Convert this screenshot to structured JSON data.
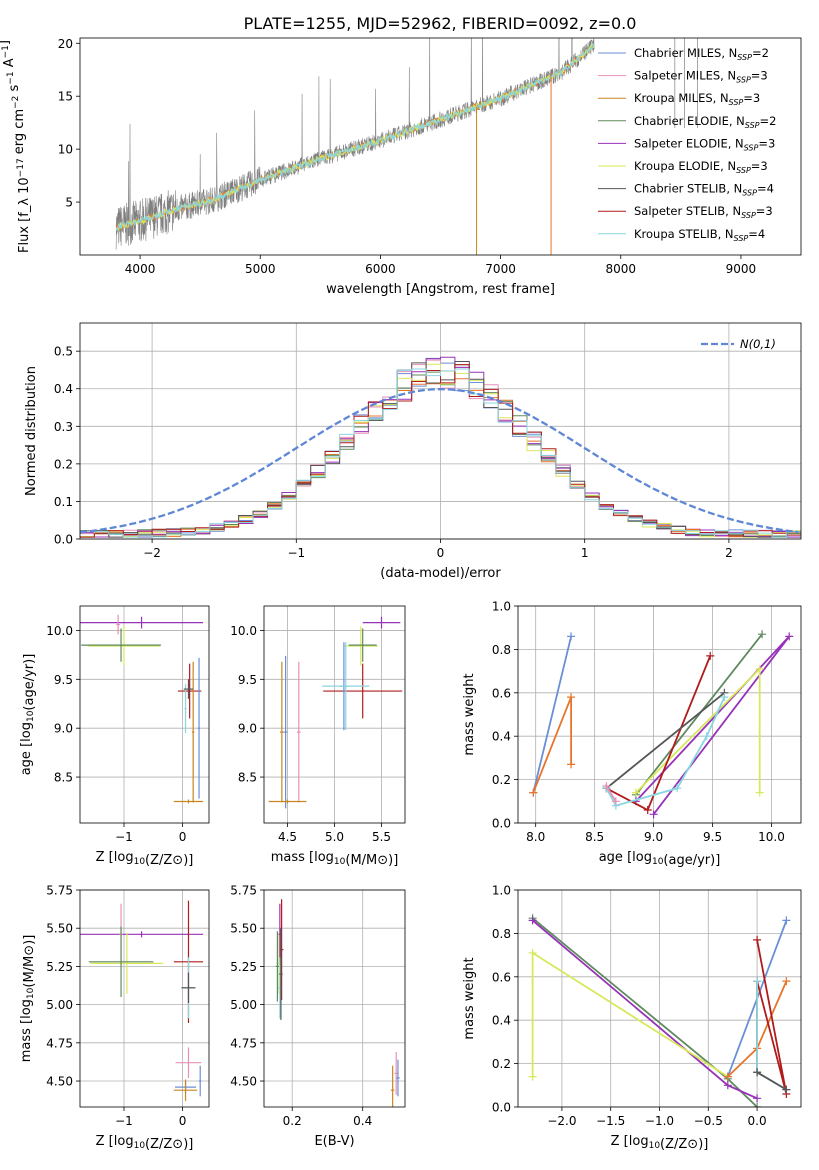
{
  "colors": {
    "Chabrier MILES": "#6a8fd6",
    "Salpeter MILES": "#e891b8",
    "Kroupa MILES": "#c7861f",
    "Chabrier ELODIE": "#5f8a5f",
    "Salpeter ELODIE": "#9632b8",
    "Kroupa ELODIE": "#d8e85a",
    "Chabrier STELIB": "#555555",
    "Salpeter STELIB": "#b01c1c",
    "Kroupa STELIB": "#8ad6e0",
    "data": "#808080",
    "orange": "#e8742a",
    "gaussian": "#5f87d6"
  },
  "chart_data": [
    {
      "id": "spectrum",
      "type": "line",
      "title": "PLATE=1255, MJD=52962, FIBERID=0092, z=0.0",
      "xlabel": "wavelength [Angstrom, rest frame]",
      "ylabel": "Flux [f_λ 10^-17 erg cm^-2 s^-1 A^-1]",
      "xlim": [
        3500,
        9500
      ],
      "ylim": [
        0,
        20.5
      ],
      "xticks": [
        4000,
        5000,
        6000,
        7000,
        8000,
        9000
      ],
      "yticks": [
        5,
        10,
        15,
        20
      ],
      "legend_position": "right",
      "legend": [
        {
          "label": "Chabrier MILES, N",
          "sub": "SSP",
          "tail": "=2",
          "model": "Chabrier MILES"
        },
        {
          "label": "Salpeter MILES, N",
          "sub": "SSP",
          "tail": "=3",
          "model": "Salpeter MILES"
        },
        {
          "label": "Kroupa MILES, N",
          "sub": "SSP",
          "tail": "=3",
          "model": "Kroupa MILES"
        },
        {
          "label": "Chabrier ELODIE, N",
          "sub": "SSP",
          "tail": "=2",
          "model": "Chabrier ELODIE"
        },
        {
          "label": "Salpeter ELODIE, N",
          "sub": "SSP",
          "tail": "=3",
          "model": "Salpeter ELODIE"
        },
        {
          "label": "Kroupa ELODIE, N",
          "sub": "SSP",
          "tail": "=3",
          "model": "Kroupa ELODIE"
        },
        {
          "label": "Chabrier STELIB, N",
          "sub": "SSP",
          "tail": "=4",
          "model": "Chabrier STELIB"
        },
        {
          "label": "Salpeter STELIB, N",
          "sub": "SSP",
          "tail": "=3",
          "model": "Salpeter STELIB"
        },
        {
          "label": "Kroupa STELIB, N",
          "sub": "SSP",
          "tail": "=4",
          "model": "Kroupa STELIB"
        }
      ],
      "continuum": {
        "x": [
          3800,
          4000,
          4300,
          4600,
          5000,
          5500,
          6000,
          6500,
          7000,
          7500,
          7800
        ],
        "y": [
          2.6,
          3.2,
          4.3,
          5.2,
          7.1,
          9.1,
          10.8,
          12.8,
          14.8,
          17.2,
          20.0
        ]
      },
      "noise_amplitude": 1.3
    },
    {
      "id": "residuals",
      "type": "step",
      "xlabel": "(data-model)/error",
      "ylabel": "Normed distribution",
      "xlim": [
        -2.5,
        2.5
      ],
      "ylim": [
        0,
        0.575
      ],
      "xticks": [
        -2,
        -1,
        0,
        1,
        2
      ],
      "yticks": [
        0.0,
        0.1,
        0.2,
        0.3,
        0.4,
        0.5
      ],
      "legend_position": "top-right",
      "gaussian_label": "N(0,1)",
      "bin_edges_from": -2.5,
      "bin_width": 0.1,
      "histogram_reference": [
        0.02,
        0.02,
        0.03,
        0.03,
        0.04,
        0.04,
        0.05,
        0.06,
        0.07,
        0.08,
        0.09,
        0.11,
        0.13,
        0.15,
        0.17,
        0.19,
        0.22,
        0.25,
        0.28,
        0.31,
        0.34,
        0.37,
        0.4,
        0.42,
        0.44,
        0.45,
        0.45,
        0.44,
        0.42,
        0.4,
        0.37,
        0.34,
        0.31,
        0.28,
        0.25,
        0.22,
        0.19,
        0.17,
        0.15,
        0.13,
        0.11,
        0.09,
        0.08,
        0.07,
        0.06,
        0.05,
        0.04,
        0.03,
        0.03,
        0.02
      ]
    },
    {
      "id": "age_vs_Z",
      "type": "errorbar",
      "xlabel": "Z [log10(Z/Z⊙)]",
      "ylabel": "age [log10(age/yr)]",
      "xlim": [
        -1.75,
        0.45
      ],
      "ylim": [
        8.03,
        10.25
      ],
      "xticks": [
        -1,
        0
      ],
      "yticks": [
        8.5,
        9.0,
        9.5,
        10.0
      ],
      "points": [
        {
          "model": "Salpeter ELODIE",
          "x": -0.7,
          "y": 10.08,
          "xerr": 1.05,
          "yerr": 0.06
        },
        {
          "model": "Kroupa ELODIE",
          "x": -1.0,
          "y": 9.84,
          "xerr": 0.62,
          "yerr": 0.2
        },
        {
          "model": "Chabrier ELODIE",
          "x": -1.05,
          "y": 9.85,
          "xerr": 0.68,
          "yerr": 0.17
        },
        {
          "model": "Salpeter MILES",
          "x": -1.1,
          "y": 10.06,
          "xerr": 0.03,
          "yerr": 0.1
        },
        {
          "model": "Salpeter STELIB",
          "x": 0.12,
          "y": 9.38,
          "xerr": 0.2,
          "yerr": 0.28
        },
        {
          "model": "Chabrier MILES",
          "x": 0.28,
          "y": 9.0,
          "xerr": 0.02,
          "yerr": 0.72
        },
        {
          "model": "Kroupa MILES",
          "x": 0.18,
          "y": 8.96,
          "xerr": 0.02,
          "yerr": 0.72
        },
        {
          "model": "Kroupa STELIB",
          "x": 0.05,
          "y": 9.2,
          "xerr": 0.02,
          "yerr": 0.25
        },
        {
          "model": "Chabrier STELIB",
          "x": 0.1,
          "y": 9.4,
          "xerr": 0.08,
          "yerr": 0.1
        },
        {
          "model": "Kroupa MILES",
          "x": 0.1,
          "y": 8.25,
          "xerr": 0.25,
          "yerr": 0.02
        }
      ]
    },
    {
      "id": "age_vs_mass",
      "type": "errorbar",
      "xlabel": "mass [log10(M/M⊙)]",
      "ylabel": "",
      "xlim": [
        4.25,
        5.75
      ],
      "ylim": [
        8.03,
        10.25
      ],
      "xticks": [
        4.5,
        5.0,
        5.5
      ],
      "yticks": [
        8.5,
        9.0,
        9.5,
        10.0
      ],
      "points": [
        {
          "model": "Salpeter ELODIE",
          "x": 5.5,
          "y": 10.08,
          "xerr": 0.2,
          "yerr": 0.06
        },
        {
          "model": "Kroupa ELODIE",
          "x": 5.28,
          "y": 9.84,
          "xerr": 0.18,
          "yerr": 0.2
        },
        {
          "model": "Chabrier ELODIE",
          "x": 5.3,
          "y": 9.85,
          "xerr": 0.15,
          "yerr": 0.17
        },
        {
          "model": "Salpeter STELIB",
          "x": 5.3,
          "y": 9.38,
          "xerr": 0.42,
          "yerr": 0.28
        },
        {
          "model": "Chabrier MILES",
          "x": 5.1,
          "y": 9.43,
          "xerr": 0.05,
          "yerr": 0.45
        },
        {
          "model": "Kroupa STELIB",
          "x": 5.12,
          "y": 9.43,
          "xerr": 0.25,
          "yerr": 0.45
        },
        {
          "model": "Kroupa MILES",
          "x": 4.44,
          "y": 8.96,
          "xerr": 0.02,
          "yerr": 0.72
        },
        {
          "model": "Chabrier MILES",
          "x": 4.48,
          "y": 8.96,
          "xerr": 0.02,
          "yerr": 0.78
        },
        {
          "model": "Salpeter MILES",
          "x": 4.62,
          "y": 8.96,
          "xerr": 0.02,
          "yerr": 0.72
        },
        {
          "model": "Kroupa MILES",
          "x": 4.5,
          "y": 8.25,
          "xerr": 0.2,
          "yerr": 0.02
        }
      ]
    },
    {
      "id": "massweight_vs_age",
      "type": "line",
      "xlabel": "age [log10(age/yr)]",
      "ylabel": "mass weight",
      "xlim": [
        7.85,
        10.25
      ],
      "ylim": [
        0,
        1.0
      ],
      "xticks": [
        8.0,
        8.5,
        9.0,
        9.5,
        10.0
      ],
      "yticks": [
        0.0,
        0.2,
        0.4,
        0.6,
        0.8,
        1.0
      ],
      "series": [
        {
          "model": "Chabrier MILES",
          "x": [
            7.98,
            8.3
          ],
          "y": [
            0.14,
            0.86
          ]
        },
        {
          "model": "orange",
          "x": [
            7.98,
            8.3,
            8.3
          ],
          "y": [
            0.14,
            0.58,
            0.27
          ]
        },
        {
          "model": "Chabrier ELODIE",
          "x": [
            8.85,
            9.92
          ],
          "y": [
            0.13,
            0.87
          ]
        },
        {
          "model": "Salpeter ELODIE",
          "x": [
            9.0,
            10.15,
            8.85
          ],
          "y": [
            0.04,
            0.86,
            0.1
          ]
        },
        {
          "model": "Kroupa ELODIE",
          "x": [
            8.85,
            9.9,
            9.9
          ],
          "y": [
            0.14,
            0.71,
            0.14
          ]
        },
        {
          "model": "Salpeter STELIB",
          "x": [
            8.6,
            8.95,
            9.48
          ],
          "y": [
            0.16,
            0.06,
            0.77
          ]
        },
        {
          "model": "Chabrier STELIB",
          "x": [
            8.6,
            9.6
          ],
          "y": [
            0.16,
            0.6
          ]
        },
        {
          "model": "Kroupa STELIB",
          "x": [
            8.6,
            8.68,
            9.2,
            9.45,
            9.6
          ],
          "y": [
            0.16,
            0.08,
            0.16,
            0.4,
            0.58
          ]
        },
        {
          "model": "Salpeter MILES",
          "x": [
            8.6,
            8.68
          ],
          "y": [
            0.17,
            0.1
          ]
        }
      ]
    },
    {
      "id": "mass_vs_Z",
      "type": "errorbar",
      "xlabel": "Z [log10(Z/Z⊙)]",
      "ylabel": "mass [log10(M/M⊙)]",
      "xlim": [
        -1.75,
        0.45
      ],
      "ylim": [
        4.33,
        5.75
      ],
      "xticks": [
        -1,
        0
      ],
      "yticks": [
        4.5,
        4.75,
        5.0,
        5.25,
        5.5,
        5.75
      ],
      "points": [
        {
          "model": "Salpeter ELODIE",
          "x": -0.7,
          "y": 5.46,
          "xerr": 1.05,
          "yerr": 0.02
        },
        {
          "model": "Salpeter MILES",
          "x": -1.05,
          "y": 5.46,
          "xerr": 0.03,
          "yerr": 0.2
        },
        {
          "model": "Kroupa ELODIE",
          "x": -0.95,
          "y": 5.27,
          "xerr": 0.62,
          "yerr": 0.2
        },
        {
          "model": "Chabrier ELODIE",
          "x": -1.05,
          "y": 5.28,
          "xerr": 0.55,
          "yerr": 0.23
        },
        {
          "model": "Salpeter STELIB",
          "x": 0.1,
          "y": 5.28,
          "xerr": 0.25,
          "yerr": 0.4
        },
        {
          "model": "Kroupa STELIB",
          "x": 0.1,
          "y": 5.11,
          "xerr": 0.1,
          "yerr": 0.2
        },
        {
          "model": "Chabrier STELIB",
          "x": 0.1,
          "y": 5.11,
          "xerr": 0.12,
          "yerr": 0.1
        },
        {
          "model": "Salpeter MILES",
          "x": 0.1,
          "y": 4.62,
          "xerr": 0.22,
          "yerr": 0.1
        },
        {
          "model": "Chabrier MILES",
          "x": 0.05,
          "y": 4.46,
          "xerr": 0.18,
          "yerr": 0.04
        },
        {
          "model": "Kroupa MILES",
          "x": 0.05,
          "y": 4.44,
          "xerr": 0.2,
          "yerr": 0.07
        },
        {
          "model": "Chabrier MILES",
          "x": 0.3,
          "y": 4.5,
          "xerr": 0.02,
          "yerr": 0.1
        }
      ]
    },
    {
      "id": "mass_vs_EBV",
      "type": "errorbar",
      "xlabel": "E(B-V)",
      "ylabel": "",
      "xlim": [
        0.12,
        0.52
      ],
      "ylim": [
        4.33,
        5.75
      ],
      "xticks": [
        0.2,
        0.4
      ],
      "yticks": [
        4.5,
        4.75,
        5.0,
        5.25,
        5.5,
        5.75
      ],
      "points": [
        {
          "model": "Salpeter ELODIE",
          "x": 0.165,
          "y": 5.46,
          "xerr": 0.005,
          "yerr": 0.2
        },
        {
          "model": "Salpeter STELIB",
          "x": 0.17,
          "y": 5.36,
          "xerr": 0.005,
          "yerr": 0.33
        },
        {
          "model": "Kroupa ELODIE",
          "x": 0.16,
          "y": 5.27,
          "xerr": 0.005,
          "yerr": 0.2
        },
        {
          "model": "Chabrier ELODIE",
          "x": 0.158,
          "y": 5.25,
          "xerr": 0.005,
          "yerr": 0.23
        },
        {
          "model": "Kroupa STELIB",
          "x": 0.165,
          "y": 5.11,
          "xerr": 0.005,
          "yerr": 0.2
        },
        {
          "model": "Chabrier STELIB",
          "x": 0.168,
          "y": 5.2,
          "xerr": 0.005,
          "yerr": 0.3
        },
        {
          "model": "Kroupa MILES",
          "x": 0.485,
          "y": 4.44,
          "xerr": 0.005,
          "yerr": 0.16
        },
        {
          "model": "Salpeter MILES",
          "x": 0.495,
          "y": 4.55,
          "xerr": 0.005,
          "yerr": 0.14
        },
        {
          "model": "Chabrier MILES",
          "x": 0.5,
          "y": 4.52,
          "xerr": 0.005,
          "yerr": 0.12
        }
      ]
    },
    {
      "id": "massweight_vs_Z",
      "type": "line",
      "xlabel": "Z [log10(Z/Z⊙)]",
      "ylabel": "mass weight",
      "xlim": [
        -2.45,
        0.45
      ],
      "ylim": [
        0,
        1.0
      ],
      "xticks": [
        -2.0,
        -1.5,
        -1.0,
        -0.5,
        0.0
      ],
      "yticks": [
        0.0,
        0.2,
        0.4,
        0.6,
        0.8,
        1.0
      ],
      "series": [
        {
          "model": "Chabrier ELODIE",
          "x": [
            -2.3,
            -0.3,
            0.0
          ],
          "y": [
            0.87,
            0.13,
            0.0
          ]
        },
        {
          "model": "Salpeter ELODIE",
          "x": [
            -2.3,
            -0.3,
            0.0
          ],
          "y": [
            0.86,
            0.1,
            0.04
          ]
        },
        {
          "model": "Kroupa ELODIE",
          "x": [
            -2.3,
            -2.3,
            -0.3
          ],
          "y": [
            0.14,
            0.71,
            0.14
          ]
        },
        {
          "model": "Chabrier MILES",
          "x": [
            -0.3,
            0.3
          ],
          "y": [
            0.14,
            0.86
          ]
        },
        {
          "model": "orange",
          "x": [
            -0.3,
            0.0,
            0.3
          ],
          "y": [
            0.14,
            0.27,
            0.58
          ]
        },
        {
          "model": "Salpeter STELIB",
          "x": [
            0.0,
            0.3,
            0.0,
            0.0
          ],
          "y": [
            0.77,
            0.06,
            0.58,
            0.16
          ]
        },
        {
          "model": "Kroupa STELIB",
          "x": [
            0.0,
            0.0,
            0.3
          ],
          "y": [
            0.58,
            0.16,
            0.08
          ]
        },
        {
          "model": "Chabrier STELIB",
          "x": [
            0.0,
            0.3
          ],
          "y": [
            0.16,
            0.08
          ]
        }
      ]
    }
  ]
}
